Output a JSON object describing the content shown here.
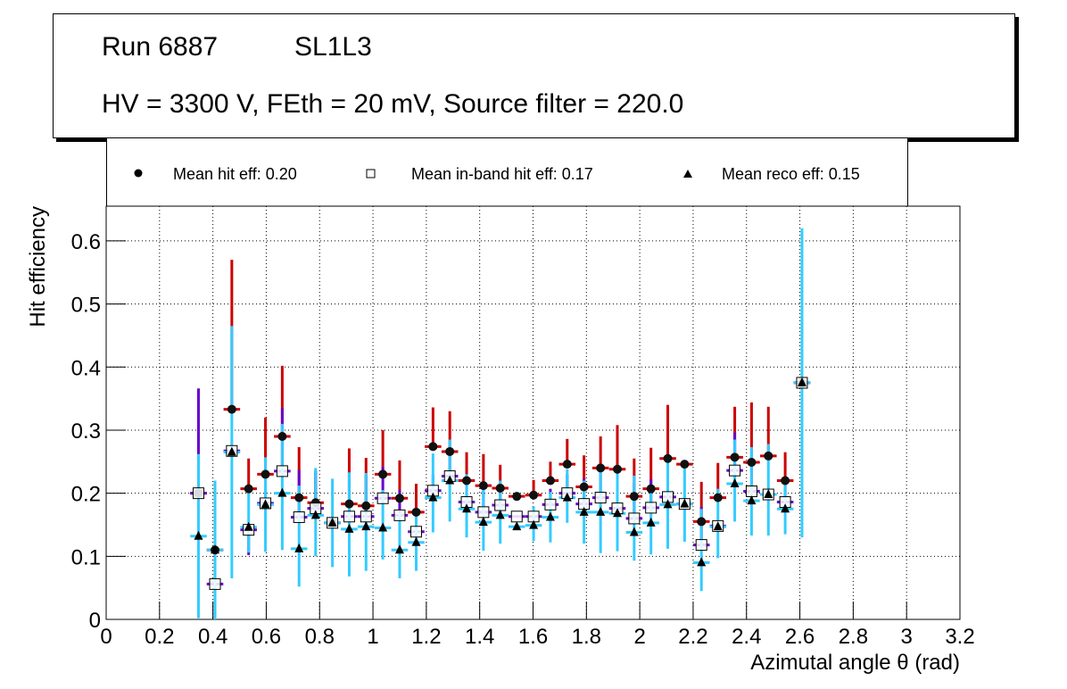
{
  "title_box": {
    "run": "Run 6887",
    "layer": "SL1L3",
    "conditions": "HV = 3300 V, FEth = 20 mV, Source filter = 220.0"
  },
  "legend": [
    {
      "marker": "filled-circle",
      "label": "Mean hit  eff: 0.20"
    },
    {
      "marker": "open-square",
      "label": "Mean in-band hit eff: 0.17"
    },
    {
      "marker": "filled-triangle",
      "label": "Mean reco eff: 0.15"
    }
  ],
  "colors": {
    "hit_err": "#cc0000",
    "inband_err": "#6600cc",
    "reco_err": "#33ccff"
  },
  "chart_data": {
    "type": "scatter",
    "title": "Run 6887 SL1L3 — HV = 3300 V, FEth = 20 mV, Source filter = 220.0",
    "xlabel": "Azimutal angle θ (rad)",
    "ylabel": "Hit efficiency",
    "xlim": [
      0,
      3.2
    ],
    "ylim": [
      0,
      0.655
    ],
    "xticks": [
      "0",
      "0.2",
      "0.4",
      "0.6",
      "0.8",
      "1",
      "1.2",
      "1.4",
      "1.6",
      "1.8",
      "2",
      "2.2",
      "2.4",
      "2.6",
      "2.8",
      "3",
      "3.2"
    ],
    "yticks": [
      "0",
      "0.1",
      "0.2",
      "0.3",
      "0.4",
      "0.5",
      "0.6"
    ],
    "grid": true,
    "legend_position": "top",
    "x": [
      0.346,
      0.408,
      0.471,
      0.534,
      0.597,
      0.66,
      0.723,
      0.785,
      0.848,
      0.911,
      0.974,
      1.037,
      1.1,
      1.162,
      1.225,
      1.288,
      1.351,
      1.414,
      1.477,
      1.539,
      1.602,
      1.665,
      1.728,
      1.791,
      1.853,
      1.916,
      1.979,
      2.042,
      2.105,
      2.168,
      2.231,
      2.293,
      2.356,
      2.419,
      2.482,
      2.545,
      2.608,
      2.655
    ],
    "series": [
      {
        "name": "Mean hit eff",
        "values": [
          0.2,
          0.11,
          0.333,
          0.207,
          0.23,
          0.29,
          0.193,
          0.185,
          0.153,
          0.183,
          0.18,
          0.23,
          0.192,
          0.17,
          0.274,
          0.266,
          0.22,
          0.212,
          0.208,
          0.195,
          0.197,
          0.22,
          0.246,
          0.21,
          0.24,
          0.238,
          0.195,
          0.207,
          0.255,
          0.246,
          0.155,
          0.193,
          0.257,
          0.249,
          0.259,
          0.22,
          0.375,
          null
        ],
        "err_up": [
          0.0,
          0.0,
          0.237,
          0.048,
          0.09,
          0.112,
          0.08,
          0.048,
          0.0,
          0.088,
          0.076,
          0.07,
          0.06,
          0.045,
          0.062,
          0.064,
          0.045,
          0.05,
          0.037,
          0.0,
          0.024,
          0.03,
          0.04,
          0.05,
          0.05,
          0.07,
          0.06,
          0.065,
          0.085,
          0.0,
          0.063,
          0.055,
          0.08,
          0.095,
          0.078,
          0.045,
          0.0,
          null
        ],
        "err_down": [
          0.0,
          0.0,
          0.0,
          0.0,
          0.0,
          0.0,
          0.0,
          0.0,
          0.0,
          0.0,
          0.0,
          0.0,
          0.0,
          0.0,
          0.0,
          0.0,
          0.0,
          0.0,
          0.0,
          0.0,
          0.0,
          0.0,
          0.0,
          0.0,
          0.0,
          0.0,
          0.0,
          0.0,
          0.0,
          0.0,
          0.0,
          0.0,
          0.0,
          0.0,
          0.0,
          0.0,
          0.0,
          null
        ]
      },
      {
        "name": "Mean in-band hit eff",
        "values": [
          0.2,
          0.056,
          0.267,
          0.142,
          0.184,
          0.235,
          0.162,
          0.176,
          0.153,
          0.163,
          0.163,
          0.192,
          0.165,
          0.139,
          0.204,
          0.227,
          0.186,
          0.17,
          0.181,
          0.163,
          0.163,
          0.182,
          0.2,
          0.183,
          0.193,
          0.176,
          0.16,
          0.177,
          0.194,
          0.183,
          0.118,
          0.148,
          0.236,
          0.203,
          0.198,
          0.186,
          0.375,
          null
        ],
        "err_up": [
          0.166,
          0.0,
          0.0,
          0.0,
          0.0,
          0.1,
          0.075,
          0.06,
          0.0,
          0.07,
          0.065,
          0.05,
          0.04,
          0.035,
          0.025,
          0.04,
          0.03,
          0.04,
          0.025,
          0.0,
          0.0,
          0.025,
          0.03,
          0.04,
          0.04,
          0.04,
          0.055,
          0.045,
          0.0,
          0.0,
          0.06,
          0.0,
          0.06,
          0.07,
          0.0,
          0.035,
          0.0,
          null
        ],
        "err_down": [
          0.0,
          0.056,
          0.0,
          0.04,
          0.0,
          0.0,
          0.0,
          0.0,
          0.0,
          0.0,
          0.0,
          0.0,
          0.0,
          0.0,
          0.0,
          0.0,
          0.0,
          0.0,
          0.0,
          0.0,
          0.0,
          0.0,
          0.0,
          0.0,
          0.0,
          0.0,
          0.0,
          0.0,
          0.0,
          0.0,
          0.0,
          0.0,
          0.0,
          0.0,
          0.0,
          0.0,
          0.0,
          null
        ]
      },
      {
        "name": "Mean reco eff",
        "values": [
          0.132,
          0.11,
          0.265,
          0.146,
          0.182,
          0.2,
          0.112,
          0.165,
          0.153,
          0.143,
          0.147,
          0.145,
          0.11,
          0.122,
          0.193,
          0.22,
          0.175,
          0.154,
          0.165,
          0.147,
          0.149,
          0.162,
          0.193,
          0.17,
          0.17,
          0.168,
          0.138,
          0.153,
          0.182,
          0.183,
          0.09,
          0.147,
          0.215,
          0.188,
          0.198,
          0.175,
          0.375,
          null
        ],
        "err_up": [
          0.13,
          0.11,
          0.2,
          0.065,
          0.075,
          0.11,
          0.1,
          0.075,
          0.07,
          0.09,
          0.085,
          0.06,
          0.06,
          0.055,
          0.07,
          0.065,
          0.055,
          0.055,
          0.055,
          0.0,
          0.03,
          0.04,
          0.045,
          0.05,
          0.065,
          0.075,
          0.09,
          0.06,
          0.075,
          0.06,
          0.085,
          0.06,
          0.07,
          0.085,
          0.08,
          0.05,
          0.245,
          null
        ],
        "err_down": [
          0.13,
          0.11,
          0.2,
          0.04,
          0.075,
          0.09,
          0.06,
          0.065,
          0.07,
          0.075,
          0.07,
          0.05,
          0.045,
          0.045,
          0.055,
          0.065,
          0.045,
          0.045,
          0.045,
          0.0,
          0.025,
          0.04,
          0.04,
          0.05,
          0.065,
          0.06,
          0.045,
          0.05,
          0.07,
          0.06,
          0.045,
          0.05,
          0.06,
          0.055,
          0.065,
          0.04,
          0.245,
          null
        ]
      }
    ]
  }
}
